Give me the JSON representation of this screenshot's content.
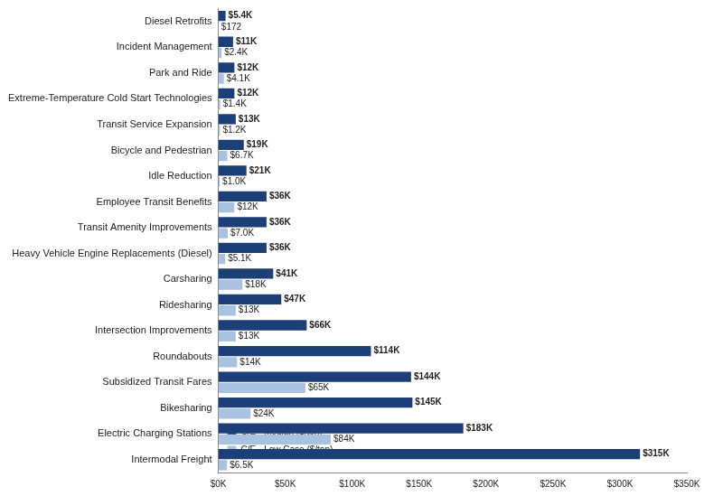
{
  "chart_data": {
    "type": "bar",
    "orientation": "horizontal",
    "categories": [
      "Diesel Retrofits",
      "Incident Management",
      "Park and Ride",
      "Extreme-Temperature Cold Start Technologies",
      "Transit Service Expansion",
      "Bicycle and Pedestrian",
      "Idle Reduction",
      "Employee Transit Benefits",
      "Transit Amenity Improvements",
      "Heavy Vehicle Engine Replacements (Diesel)",
      "Carsharing",
      "Ridesharing",
      "Intersection Improvements",
      "Roundabouts",
      "Subsidized Transit Fares",
      "Bikesharing",
      "Electric Charging Stations",
      "Intermodal Freight"
    ],
    "series": [
      {
        "name": "C/E - Median ($/ton)",
        "color": "#1c3f78",
        "values": [
          5400,
          11000,
          12000,
          12000,
          13000,
          19000,
          21000,
          36000,
          36000,
          36000,
          41000,
          47000,
          66000,
          114000,
          144000,
          145000,
          183000,
          315000
        ],
        "value_labels": [
          "$5.4K",
          "$11K",
          "$12K",
          "$12K",
          "$13K",
          "$19K",
          "$21K",
          "$36K",
          "$36K",
          "$36K",
          "$41K",
          "$47K",
          "$66K",
          "$114K",
          "$144K",
          "$145K",
          "$183K",
          "$315K"
        ]
      },
      {
        "name": "C/E - Low Case ($/ton)",
        "color": "#a9c2e2",
        "values": [
          172,
          2400,
          4100,
          1400,
          1200,
          6700,
          1000,
          12000,
          7000,
          5100,
          18000,
          13000,
          13000,
          14000,
          65000,
          24000,
          84000,
          6500
        ],
        "value_labels": [
          "$172",
          "$2.4K",
          "$4.1K",
          "$1.4K",
          "$1.2K",
          "$6.7K",
          "$1.0K",
          "$12K",
          "$7.0K",
          "$5.1K",
          "$18K",
          "$13K",
          "$13K",
          "$14K",
          "$65K",
          "$24K",
          "$84K",
          "$6.5K"
        ]
      }
    ],
    "xlim": [
      0,
      350000
    ],
    "xticks": [
      {
        "value": 0,
        "label": "$0K"
      },
      {
        "value": 50000,
        "label": "$50K"
      },
      {
        "value": 100000,
        "label": "$100K"
      },
      {
        "value": 150000,
        "label": "$150K"
      },
      {
        "value": 200000,
        "label": "$200K"
      },
      {
        "value": 250000,
        "label": "$250K"
      },
      {
        "value": 300000,
        "label": "$300K"
      },
      {
        "value": 350000,
        "label": "$350K"
      }
    ],
    "grid": false,
    "legend": "upper right",
    "data_labels": true
  }
}
